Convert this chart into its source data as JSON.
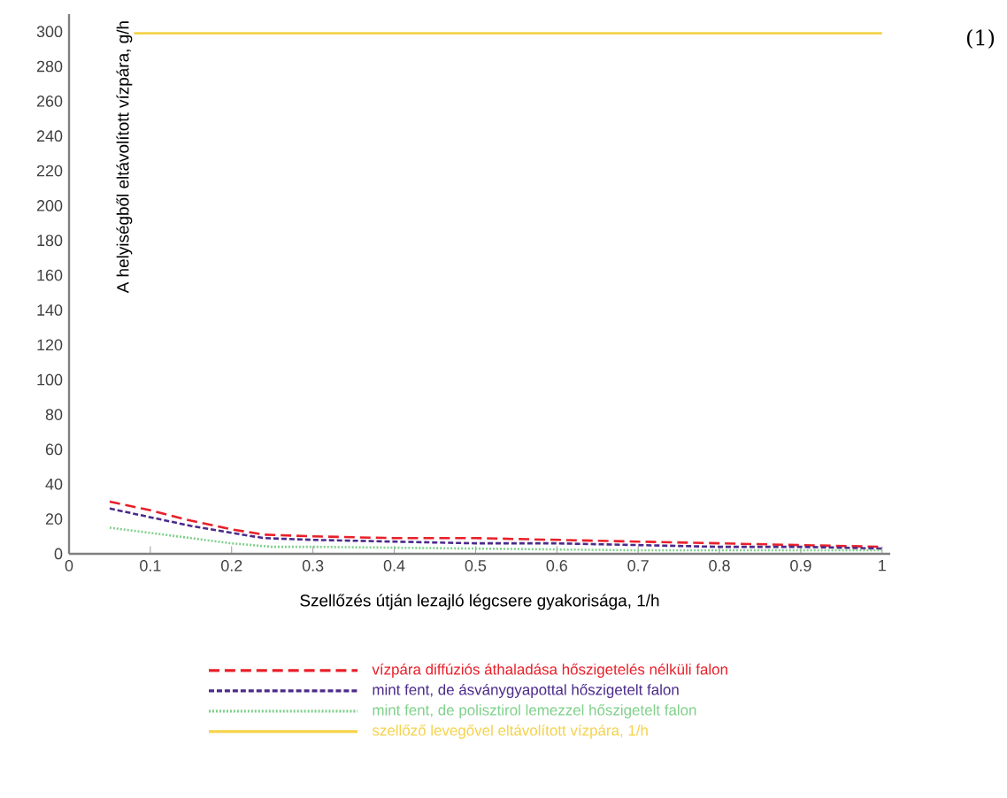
{
  "chart_data": {
    "type": "line",
    "xlabel": "Szellőzés útján lezajló légcsere gyakorisága, 1/h",
    "ylabel": "A helyiségből eltávolított vízpára, g/h",
    "annotations": [
      "(1)"
    ],
    "xlim": [
      0,
      1.01
    ],
    "ylim": [
      0,
      310
    ],
    "xticks": [
      0,
      0.1,
      0.2,
      0.3,
      0.4,
      0.5,
      0.6,
      0.7,
      0.8,
      0.9,
      1
    ],
    "yticks": [
      0,
      20,
      40,
      60,
      80,
      100,
      120,
      140,
      160,
      180,
      200,
      220,
      240,
      260,
      280,
      300
    ],
    "legend": "bottom",
    "grid": false,
    "series": [
      {
        "name": "vízpára diffúziós áthaladása hőszigetelés nélküli falon",
        "color": "#e8202a",
        "line_style": "dashed",
        "x": [
          0.05,
          0.1,
          0.15,
          0.2,
          0.24,
          0.3,
          0.4,
          0.5,
          0.6,
          0.7,
          0.8,
          0.9,
          1.0
        ],
        "values": [
          30,
          25,
          19,
          14,
          11,
          10,
          9,
          9,
          8,
          7,
          6,
          5,
          4
        ]
      },
      {
        "name": "mint fent, de ásványgyapottal hőszigetelt falon",
        "color": "#4b2a8a",
        "line_style": "dashed",
        "x": [
          0.05,
          0.1,
          0.15,
          0.2,
          0.24,
          0.3,
          0.4,
          0.5,
          0.6,
          0.7,
          0.8,
          0.9,
          1.0
        ],
        "values": [
          26,
          21,
          16,
          12,
          9,
          8,
          7,
          6,
          6,
          5,
          4,
          4,
          3
        ]
      },
      {
        "name": "mint fent, de polisztirol lemezzel hőszigetelt falon",
        "color": "#7fd08a",
        "line_style": "dotted",
        "x": [
          0.05,
          0.1,
          0.15,
          0.2,
          0.25,
          0.3,
          0.5,
          0.7,
          1.0
        ],
        "values": [
          15,
          12,
          9,
          6,
          4,
          4,
          3,
          2,
          2
        ]
      },
      {
        "name": "szellőző levegővel eltávolított vízpára, 1/h",
        "color": "#f5d24a",
        "line_style": "solid",
        "x": [
          0.08,
          1.0
        ],
        "values": [
          299,
          299
        ]
      }
    ]
  }
}
